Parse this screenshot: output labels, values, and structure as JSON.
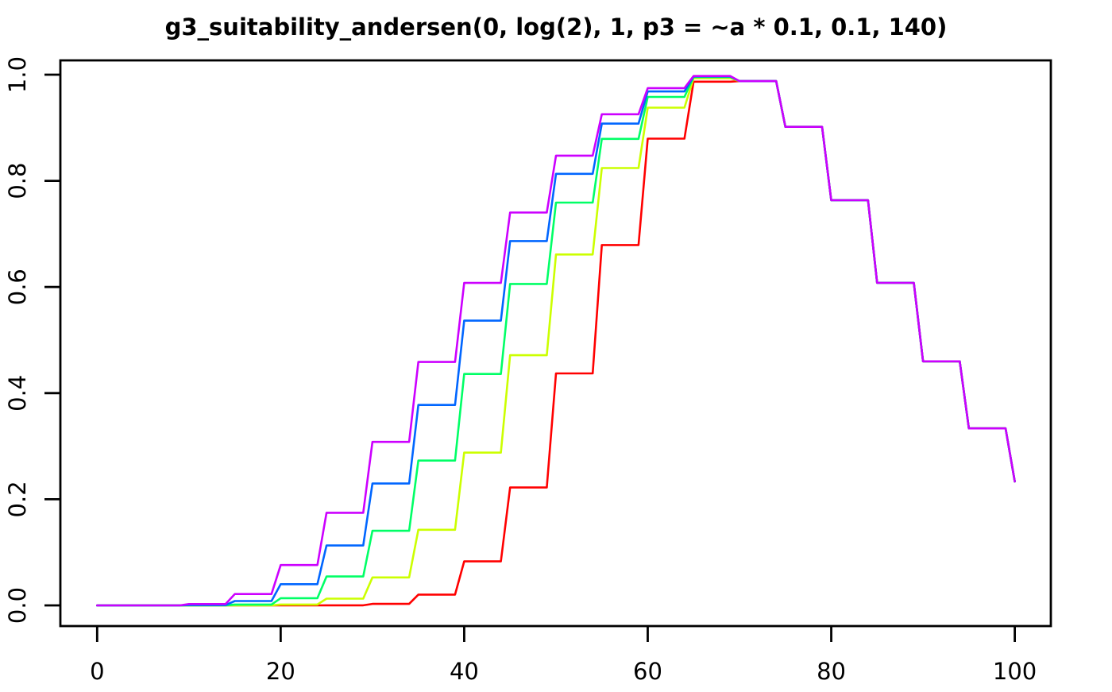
{
  "title": "g3_suitability_andersen(0, log(2), 1, p3 = ~a * 0.1, 0.1, 140)",
  "chart_data": {
    "type": "line",
    "title": "g3_suitability_andersen(0, log(2), 1, p3 = ~a * 0.1, 0.1, 140)",
    "xlabel": "",
    "ylabel": "",
    "xlim": [
      0,
      100
    ],
    "ylim": [
      0.0,
      1.0
    ],
    "grid": false,
    "legend": "none",
    "x_ticks": [
      {
        "value": 0,
        "label": "0"
      },
      {
        "value": 20,
        "label": "20"
      },
      {
        "value": 40,
        "label": "40"
      },
      {
        "value": 60,
        "label": "60"
      },
      {
        "value": 80,
        "label": "80"
      },
      {
        "value": 100,
        "label": "100"
      }
    ],
    "y_ticks": [
      {
        "value": 0.0,
        "label": "0.0"
      },
      {
        "value": 0.2,
        "label": "0.2"
      },
      {
        "value": 0.4,
        "label": "0.4"
      },
      {
        "value": 0.6,
        "label": "0.6"
      },
      {
        "value": 0.8,
        "label": "0.8"
      },
      {
        "value": 1.0,
        "label": "1.0"
      }
    ],
    "bins": {
      "start": 0,
      "width": 5,
      "count": 20,
      "ramp": 1,
      "final_x": 100
    },
    "series": [
      {
        "name": "red",
        "a": 1,
        "color": "#FF0000",
        "values": [
          0,
          0,
          0,
          0,
          0.0,
          0.0002,
          0.0028,
          0.0203,
          0.0829,
          0.2222,
          0.4372,
          0.6791,
          0.8795,
          0.9869,
          0.9878,
          0.9016,
          0.7634,
          0.6078,
          0.4599,
          0.3335,
          0.2335
        ]
      },
      {
        "name": "yellow",
        "a": 2,
        "color": "#CCFF00",
        "values": [
          0,
          0,
          0.0,
          0.0001,
          0.0016,
          0.0127,
          0.0527,
          0.1425,
          0.2879,
          0.4714,
          0.6612,
          0.8241,
          0.9378,
          0.9934,
          0.9878,
          0.9016,
          0.7634,
          0.6078,
          0.4599,
          0.3335,
          0.2335
        ]
      },
      {
        "name": "green",
        "a": 3,
        "color": "#00FF66",
        "values": [
          0,
          0,
          0.0001,
          0.0017,
          0.0136,
          0.0545,
          0.1406,
          0.2729,
          0.4361,
          0.6057,
          0.759,
          0.879,
          0.9581,
          0.9956,
          0.9878,
          0.9016,
          0.7634,
          0.6078,
          0.4599,
          0.3335,
          0.2335
        ]
      },
      {
        "name": "blue",
        "a": 4,
        "color": "#0066FF",
        "values": [
          0,
          0.0,
          0.0006,
          0.0082,
          0.0399,
          0.1128,
          0.2296,
          0.3777,
          0.5366,
          0.6866,
          0.8131,
          0.9078,
          0.9684,
          0.9967,
          0.9878,
          0.9016,
          0.7634,
          0.6078,
          0.4599,
          0.3335,
          0.2335
        ]
      },
      {
        "name": "magenta",
        "a": 5,
        "color": "#CC00FF",
        "values": [
          0,
          0.0,
          0.0026,
          0.0214,
          0.0761,
          0.1745,
          0.3081,
          0.4587,
          0.6077,
          0.7402,
          0.8475,
          0.9255,
          0.9747,
          0.9974,
          0.9878,
          0.9016,
          0.7634,
          0.6078,
          0.4599,
          0.3335,
          0.2335
        ]
      }
    ]
  }
}
